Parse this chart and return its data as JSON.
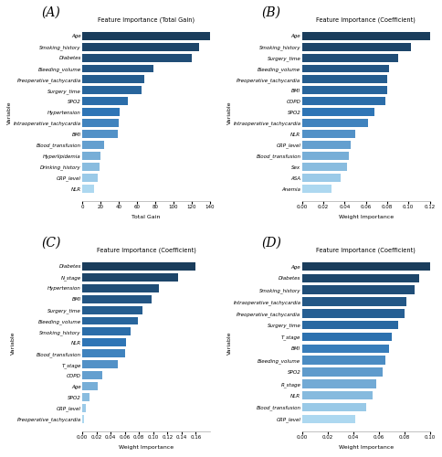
{
  "A": {
    "title": "Feature Importance (Total Gain)",
    "xlabel": "Total Gain",
    "ylabel": "Variable",
    "categories": [
      "NLR",
      "CRP_level",
      "Drinking_history",
      "Hyperlipidemia",
      "Blood_transfusion",
      "BMI",
      "Intraoperative_tachycardia",
      "Hypertension",
      "SPO2",
      "Surgery_time",
      "Preoperative_tachycardia",
      "Bleeding_volume",
      "Diabetes",
      "Smoking_history",
      "Age"
    ],
    "values": [
      13,
      17,
      19,
      20,
      24,
      39,
      40,
      41,
      50,
      65,
      68,
      78,
      120,
      128,
      140
    ],
    "xlim": [
      0,
      140
    ],
    "xticks": [
      0,
      20,
      40,
      60,
      80,
      100,
      120,
      140
    ]
  },
  "B": {
    "title": "Feature Importance (Coefficient)",
    "xlabel": "Weight Importance",
    "ylabel": "Variable",
    "categories": [
      "Anemia",
      "ASA",
      "Sex",
      "Blood_transfusion",
      "CRP_level",
      "NLR",
      "Intraoperative_tachycardia",
      "SPO2",
      "COPD",
      "BMI",
      "Preoperative_tachycardia",
      "Bleeding_volume",
      "Surgery_time",
      "Smoking_history",
      "Age"
    ],
    "values": [
      0.028,
      0.036,
      0.042,
      0.044,
      0.046,
      0.05,
      0.062,
      0.068,
      0.078,
      0.08,
      0.08,
      0.082,
      0.09,
      0.102,
      0.122
    ],
    "xlim": [
      0,
      0.12
    ],
    "xticks": [
      0.0,
      0.02,
      0.04,
      0.06,
      0.08,
      0.1,
      0.12
    ]
  },
  "C": {
    "title": "Feature Importance (Coefficient)",
    "xlabel": "Weight Importance",
    "ylabel": "Variable",
    "categories": [
      "Preoperative_tachycardia",
      "CRP_level",
      "SPO2",
      "Age",
      "COPD",
      "T_stage",
      "Blood_transfusion",
      "NLR",
      "Smoking_history",
      "Bleeding_volume",
      "Surgery_time",
      "BMI",
      "Hypertension",
      "N_stage",
      "Diabetes"
    ],
    "values": [
      0.003,
      0.005,
      0.01,
      0.022,
      0.028,
      0.05,
      0.06,
      0.062,
      0.068,
      0.078,
      0.085,
      0.098,
      0.108,
      0.135,
      0.16
    ],
    "xlim": [
      0,
      0.18
    ],
    "xticks": [
      0.0,
      0.02,
      0.04,
      0.06,
      0.08,
      0.1,
      0.12,
      0.14,
      0.16
    ]
  },
  "D": {
    "title": "Feature Importance (Coefficient)",
    "xlabel": "Weight Importance",
    "ylabel": "Variable",
    "categories": [
      "CRP_level",
      "Blood_transfusion",
      "NLR",
      "R_stage",
      "SPO2",
      "Bleeding_volume",
      "BMI",
      "T_stage",
      "Surgery_time",
      "Preoperative_tachycardia",
      "Intraoperative_tachycardia",
      "Smoking_history",
      "Diabetes",
      "Age"
    ],
    "values": [
      0.042,
      0.05,
      0.055,
      0.058,
      0.063,
      0.065,
      0.068,
      0.07,
      0.075,
      0.08,
      0.082,
      0.088,
      0.092,
      0.1
    ],
    "xlim": [
      0,
      0.1
    ],
    "xticks": [
      0.0,
      0.02,
      0.04,
      0.06,
      0.08,
      0.1
    ]
  },
  "panel_labels": [
    "(A)",
    "(B)",
    "(C)",
    "(D)"
  ],
  "bg_color": "#ffffff",
  "colors": {
    "dark1": "#1a3d5c",
    "dark2": "#1e5278",
    "mid1": "#2874a6",
    "mid2": "#3d8fc2",
    "light1": "#6aabe0",
    "light2": "#90c4e8",
    "lightest": "#b8d9f0"
  }
}
